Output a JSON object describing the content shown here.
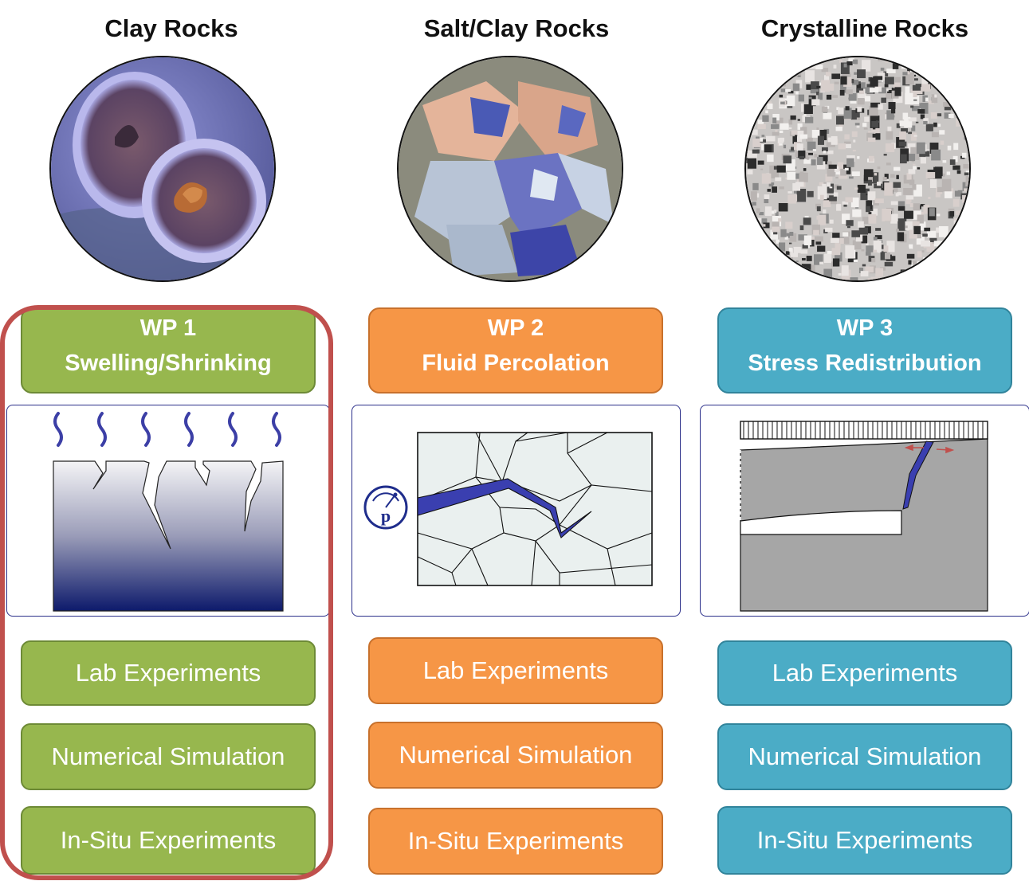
{
  "columns": [
    {
      "title": "Clay Rocks",
      "wp_number": "WP 1",
      "wp_topic": "Swelling/Shrinking",
      "tasks": [
        "Lab Experiments",
        "Numerical Simulation",
        "In-Situ Experiments"
      ],
      "color": "#97b74e"
    },
    {
      "title": "Salt/Clay Rocks",
      "wp_number": "WP 2",
      "wp_topic": "Fluid Percolation",
      "tasks": [
        "Lab Experiments",
        "Numerical Simulation",
        "In-Situ Experiments"
      ],
      "color": "#f69646",
      "gauge_symbol": "p"
    },
    {
      "title": "Crystalline Rocks",
      "wp_number": "WP 3",
      "wp_topic": "Stress Redistribution",
      "tasks": [
        "Lab Experiments",
        "Numerical Simulation",
        "In-Situ Experiments"
      ],
      "color": "#4bacc6"
    }
  ],
  "highlight_color": "#c0504d"
}
